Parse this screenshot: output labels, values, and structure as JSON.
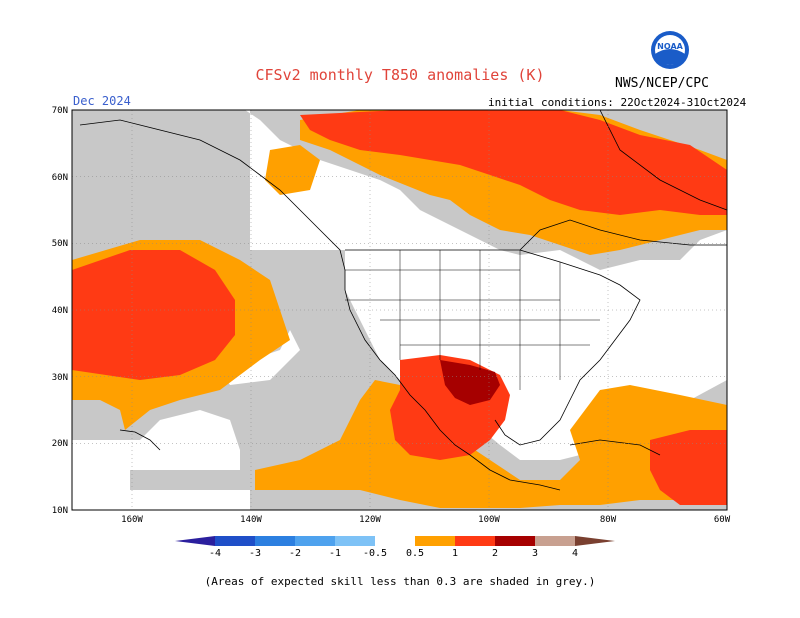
{
  "header": {
    "title": "CFSv2 monthly T850 anomalies (K)",
    "month": "Dec 2024",
    "initial_conditions": "initial conditions: 22Oct2024-31Oct2024",
    "agency": "NWS/NCEP/CPC",
    "logo_text": "NOAA"
  },
  "map": {
    "lat_labels": [
      "70N",
      "60N",
      "50N",
      "40N",
      "30N",
      "20N",
      "10N"
    ],
    "lon_labels": [
      "160W",
      "140W",
      "120W",
      "100W",
      "80W",
      "60W"
    ]
  },
  "colorbar": {
    "labels": [
      "-4",
      "-3",
      "-2",
      "-1",
      "-0.5",
      "0.5",
      "1",
      "2",
      "3",
      "4"
    ],
    "colors": [
      "#2b1f9e",
      "#1f4fc8",
      "#2c7fe0",
      "#4ea2ee",
      "#7ec2f6",
      "#ffffff",
      "#ffa000",
      "#ff3a14",
      "#a60000",
      "#c8a090",
      "#7a4030"
    ]
  },
  "colors": {
    "no_skill_grey": "#c8c8c8",
    "anomaly_05_1": "#ffa000",
    "anomaly_1_2": "#ff3a14",
    "anomaly_2_3": "#a60000"
  },
  "footnote": "(Areas of expected skill less than 0.3 are shaded in grey.)"
}
